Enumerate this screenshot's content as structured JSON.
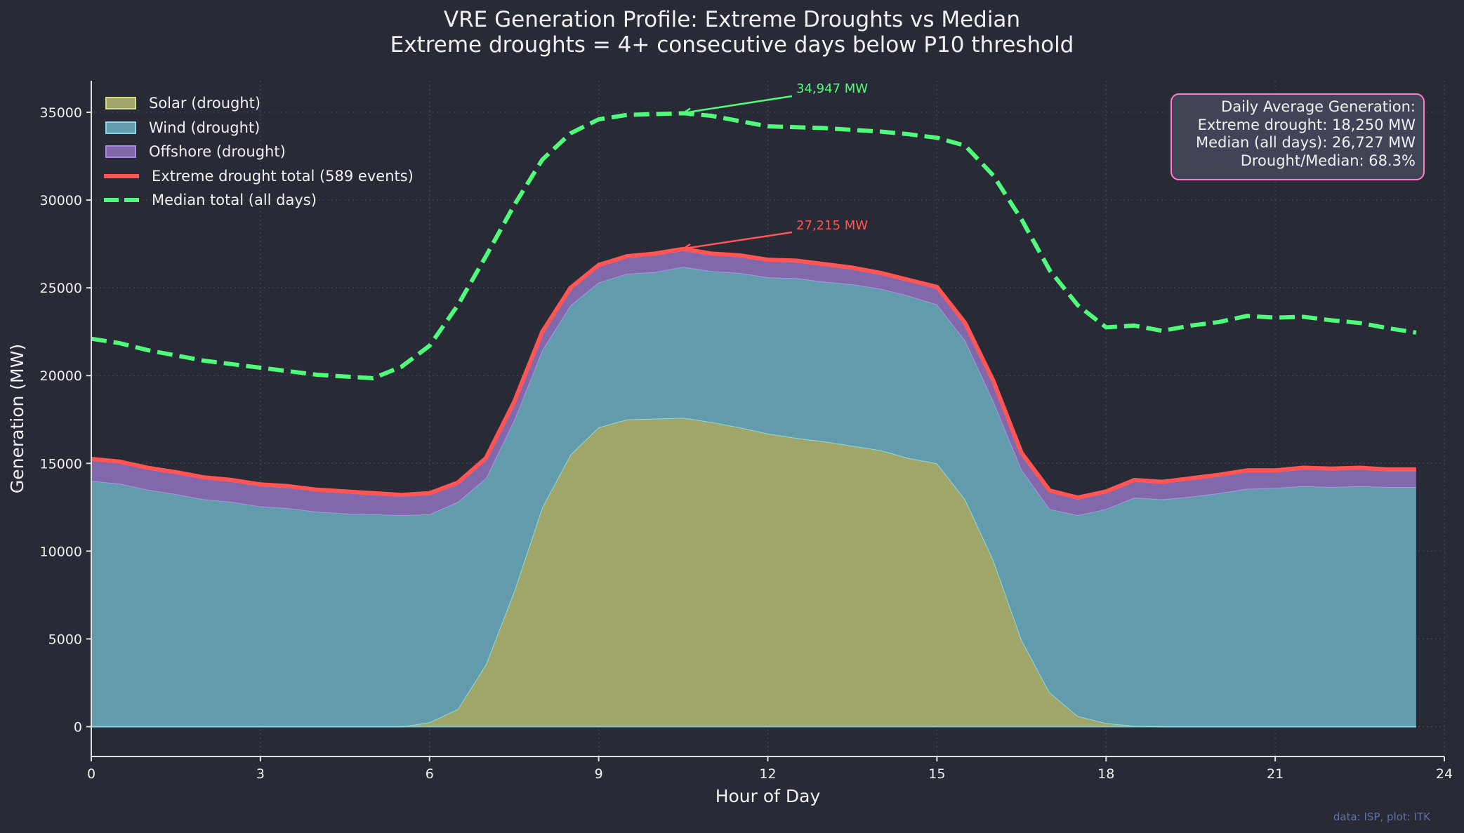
{
  "chart_data": {
    "type": "area",
    "title": "VRE Generation Profile: Extreme Droughts vs Median",
    "subtitle": "Extreme droughts = 4+ consecutive days below P10 threshold",
    "xlabel": "Hour of Day",
    "ylabel": "Generation (MW)",
    "xlim": [
      0,
      24
    ],
    "ylim": [
      -1700,
      36800
    ],
    "xticks": [
      0,
      3,
      6,
      9,
      12,
      15,
      18,
      21,
      24
    ],
    "xtick_labels": [
      "0",
      "3",
      "6",
      "9",
      "12",
      "15",
      "18",
      "21",
      "24"
    ],
    "yticks": [
      0,
      5000,
      10000,
      15000,
      20000,
      25000,
      30000,
      35000
    ],
    "ytick_labels": [
      "0",
      "5000",
      "10000",
      "15000",
      "20000",
      "25000",
      "30000",
      "35000"
    ],
    "grid": true,
    "legend_position": "top-left",
    "x": [
      0,
      0.5,
      1,
      1.5,
      2,
      2.5,
      3,
      3.5,
      4,
      4.5,
      5,
      5.5,
      6,
      6.5,
      7,
      7.5,
      8,
      8.5,
      9,
      9.5,
      10,
      10.5,
      11,
      11.5,
      12,
      12.5,
      13,
      13.5,
      14,
      14.5,
      15,
      15.5,
      16,
      16.5,
      17,
      17.5,
      18,
      18.5,
      19,
      19.5,
      20,
      20.5,
      21,
      21.5,
      22,
      22.5,
      23,
      23.5
    ],
    "series": [
      {
        "name": "Solar (drought)",
        "kind": "stacked-area",
        "color": "#f1fa8c",
        "values": [
          0,
          0,
          0,
          0,
          0,
          0,
          0,
          0,
          0,
          0,
          0,
          0,
          250,
          1000,
          3550,
          7700,
          12500,
          15500,
          17050,
          17500,
          17550,
          17600,
          17350,
          17050,
          16700,
          16450,
          16250,
          16000,
          15750,
          15300,
          15000,
          12950,
          9500,
          4950,
          1950,
          600,
          200,
          50,
          0,
          0,
          0,
          0,
          0,
          0,
          0,
          0,
          0,
          0
        ]
      },
      {
        "name": "Wind (drought)",
        "kind": "stacked-area",
        "color": "#8be9fd",
        "values": [
          14000,
          13850,
          13500,
          13250,
          12950,
          12800,
          12550,
          12450,
          12250,
          12150,
          12100,
          12050,
          11850,
          11800,
          10600,
          9750,
          8950,
          8500,
          8250,
          8300,
          8350,
          8600,
          8600,
          8800,
          8900,
          9100,
          9100,
          9200,
          9200,
          9250,
          9050,
          9050,
          9050,
          9700,
          10450,
          11450,
          12200,
          13000,
          12950,
          13100,
          13300,
          13550,
          13600,
          13700,
          13650,
          13700,
          13650,
          13650
        ]
      },
      {
        "name": "Offshore (drought)",
        "kind": "stacked-area",
        "color": "#bd93f9",
        "values": [
          1250,
          1250,
          1250,
          1250,
          1250,
          1250,
          1250,
          1250,
          1250,
          1250,
          1200,
          1150,
          1200,
          1100,
          1150,
          1050,
          1050,
          1000,
          1000,
          1000,
          1050,
          1015,
          1000,
          1000,
          1000,
          1000,
          1000,
          950,
          900,
          900,
          1000,
          1000,
          1150,
          950,
          1050,
          1000,
          1000,
          1000,
          1000,
          1050,
          1050,
          1050,
          1000,
          1050,
          1050,
          1050,
          1000,
          1000
        ]
      },
      {
        "name": "Extreme drought total (589 events)",
        "kind": "line",
        "color": "#ff5555",
        "values": [
          15250,
          15100,
          14750,
          14500,
          14200,
          14050,
          13800,
          13700,
          13500,
          13400,
          13300,
          13200,
          13300,
          13900,
          15300,
          18500,
          22500,
          25000,
          26300,
          26800,
          26950,
          27215,
          26950,
          26850,
          26600,
          26550,
          26350,
          26150,
          25850,
          25450,
          25050,
          23000,
          19700,
          15600,
          13450,
          13050,
          13400,
          14050,
          13950,
          14150,
          14350,
          14600,
          14600,
          14750,
          14700,
          14750,
          14650,
          14650
        ]
      },
      {
        "name": "Median total (all days)",
        "kind": "dashed-line",
        "color": "#50fa7b",
        "values": [
          22100,
          21850,
          21450,
          21150,
          20850,
          20650,
          20450,
          20250,
          20050,
          19950,
          19850,
          20500,
          21700,
          24000,
          26800,
          29700,
          32300,
          33800,
          34600,
          34850,
          34900,
          34947,
          34800,
          34500,
          34200,
          34150,
          34100,
          34000,
          33900,
          33750,
          33550,
          33100,
          31400,
          28900,
          26000,
          24000,
          22750,
          22850,
          22550,
          22850,
          23050,
          23400,
          23300,
          23350,
          23150,
          23000,
          22700,
          22450
        ]
      }
    ],
    "annotations": [
      {
        "text": "34,947 MW",
        "x": 10.5,
        "y": 34947,
        "color": "#50fa7b"
      },
      {
        "text": "27,215 MW",
        "x": 10.5,
        "y": 27215,
        "color": "#ff5555"
      }
    ],
    "infobox": {
      "lines": [
        "Daily Average Generation:",
        "Extreme drought: 18,250 MW",
        "Median (all days): 26,727 MW",
        "Drought/Median: 68.3%"
      ],
      "border_color": "#ff79c6"
    },
    "credit": "data: ISP, plot: ITK"
  }
}
